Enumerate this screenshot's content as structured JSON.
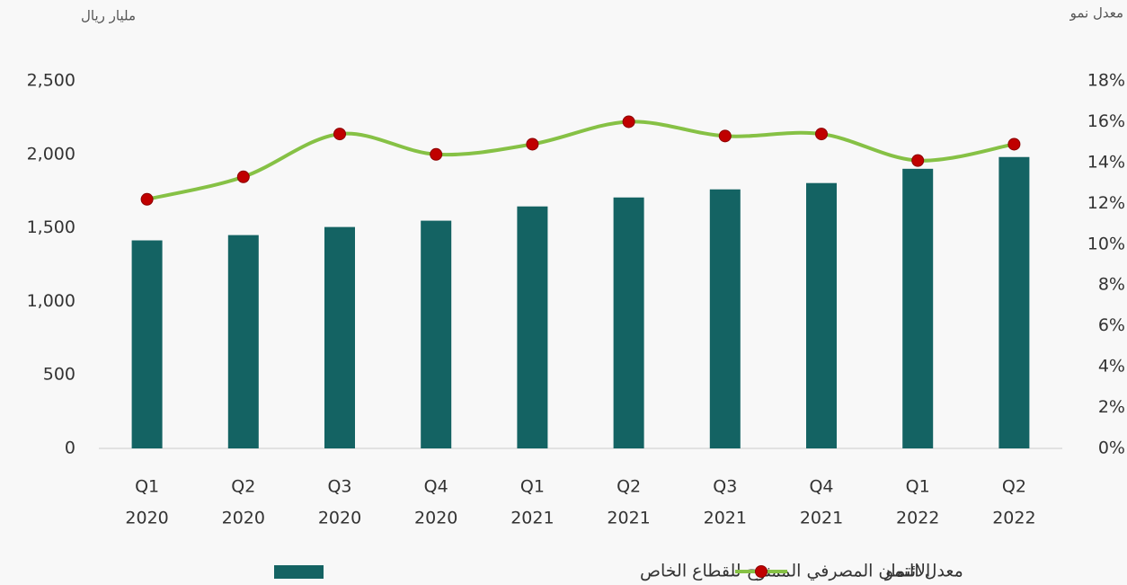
{
  "chart_data": {
    "type": "bar-line",
    "left_axis_label": "مليار ريال",
    "right_axis_label": "معدل نمو",
    "categories": [
      [
        "Q1",
        "2020"
      ],
      [
        "Q2",
        "2020"
      ],
      [
        "Q3",
        "2020"
      ],
      [
        "Q4",
        "2020"
      ],
      [
        "Q1",
        "2021"
      ],
      [
        "Q2",
        "2021"
      ],
      [
        "Q3",
        "2021"
      ],
      [
        "Q4",
        "2021"
      ],
      [
        "Q1",
        "2022"
      ],
      [
        "Q2",
        "2022"
      ]
    ],
    "series": [
      {
        "name": "الائتمان المصرفي الممنوح للقطاع الخاص",
        "type": "bar",
        "color": "#146363",
        "values": [
          1415,
          1451,
          1506,
          1549,
          1646,
          1707,
          1762,
          1805,
          1902,
          1982
        ]
      },
      {
        "name": "معدل النمو",
        "type": "line",
        "axis": "y2",
        "color": "#86c145",
        "marker_color": "#c00000",
        "values": [
          12.2,
          13.3,
          15.4,
          14.4,
          14.9,
          16.0,
          15.3,
          15.4,
          14.1,
          14.9
        ]
      }
    ],
    "ylim": [
      0,
      2500
    ],
    "yticks": [
      0,
      500,
      {
        "value": 1000,
        "label": "1,000"
      },
      {
        "value": 1500,
        "label": "1,500"
      },
      {
        "value": 2000,
        "label": "2,000"
      },
      {
        "value": 2500,
        "label": "2,500"
      }
    ],
    "y2lim": [
      0,
      18
    ],
    "y2ticks": [
      {
        "value": 0,
        "label": "0%"
      },
      {
        "value": 2,
        "label": "2%"
      },
      {
        "value": 4,
        "label": "4%"
      },
      {
        "value": 6,
        "label": "6%"
      },
      {
        "value": 8,
        "label": "8%"
      },
      {
        "value": 10,
        "label": "10%"
      },
      {
        "value": 12,
        "label": "12%"
      },
      {
        "value": 14,
        "label": "14%"
      },
      {
        "value": 16,
        "label": "16%"
      },
      {
        "value": 18,
        "label": "18%"
      }
    ]
  }
}
